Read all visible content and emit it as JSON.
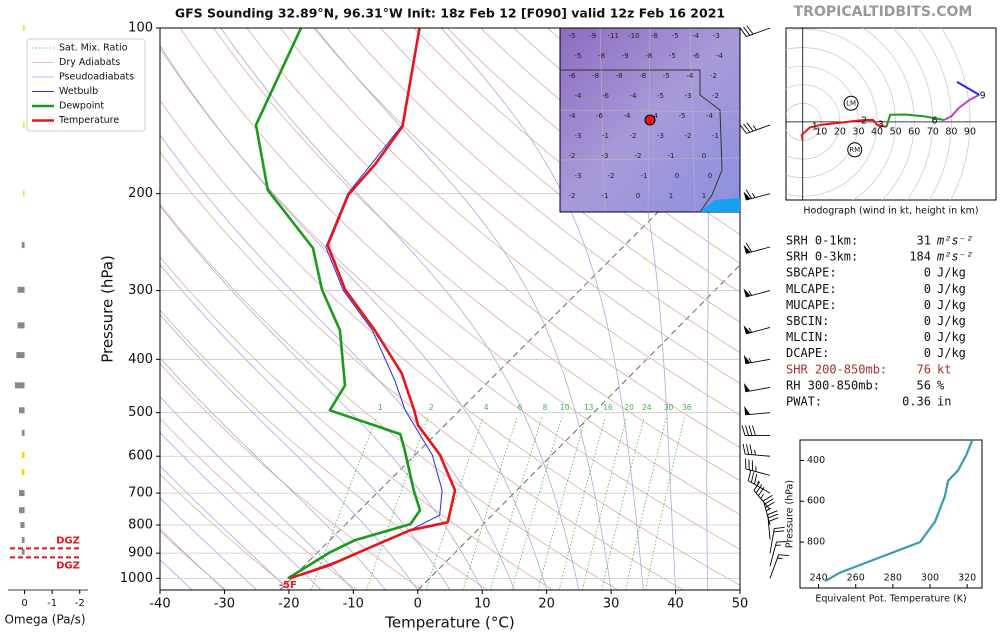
{
  "title": "GFS Sounding 32.89°N, 96.31°W Init: 18z Feb 12 [F090] valid 12z Feb 16 2021",
  "watermark": "TROPICALTIDBITS.COM",
  "chart_data": [
    {
      "type": "skewt",
      "xlabel": "Temperature (°C)",
      "ylabel": "Pressure (hPa)",
      "log_y": true,
      "grid": true,
      "legend": "upper left",
      "xlim": [
        -40,
        50
      ],
      "xticks": [
        -40,
        -30,
        -20,
        -10,
        0,
        10,
        20,
        30,
        40,
        50
      ],
      "ylim": [
        1050,
        100
      ],
      "yticks": [
        100,
        200,
        300,
        400,
        500,
        600,
        700,
        800,
        900,
        1000
      ],
      "background_lines": [
        {
          "name": "Sat. Mix. Ratio",
          "color": "#4caf50"
        },
        {
          "name": "Dry Adiabats",
          "color": "#e0aaa0"
        },
        {
          "name": "Pseudoadiabats",
          "color": "#a9a9dc"
        }
      ],
      "mixing_ratios": [
        1,
        2,
        4,
        6,
        8,
        10,
        13,
        16,
        20,
        24,
        30,
        36
      ],
      "series": [
        {
          "name": "Wetbulb",
          "color": "#2a2ae0",
          "pressure": [
            1000,
            927,
            835,
            768,
            692,
            597,
            495,
            437,
            354,
            300,
            250,
            200,
            150,
            100
          ],
          "values": [
            -21.2,
            -15.3,
            -8.6,
            -4.6,
            -6.9,
            -12.2,
            -21.2,
            -26,
            -34.9,
            -43.6,
            -51,
            -53.3,
            -52.2,
            -60
          ]
        },
        {
          "name": "Dewpoint",
          "color": "#1a9a1a",
          "pressure": [
            1000,
            898,
            853,
            797,
            752,
            692,
            585,
            547,
            495,
            446,
            354,
            299,
            251,
            197,
            150,
            100
          ],
          "values": [
            -21.4,
            -17.7,
            -15.1,
            -8.2,
            -8.2,
            -11.3,
            -17,
            -19.4,
            -32.9,
            -33.2,
            -39.9,
            -47,
            -52.9,
            -66.1,
            -74.9,
            -78.3
          ]
        },
        {
          "name": "Temperature",
          "color": "#e8141c",
          "pressure": [
            1000,
            946,
            871,
            818,
            791,
            692,
            597,
            527,
            495,
            424,
            354,
            299,
            248,
            201,
            177,
            151,
            100
          ],
          "values": [
            -21.1,
            -16.3,
            -11.4,
            -7.6,
            -2.6,
            -4.9,
            -11,
            -17.6,
            -19.8,
            -25.7,
            -34.5,
            -43.4,
            -50.9,
            -53.1,
            -52.2,
            -52,
            -59.9
          ]
        }
      ],
      "surface_label": "-5F",
      "winds": {
        "pressure": [
          100,
          150,
          200,
          250,
          300,
          350,
          400,
          450,
          500,
          550,
          600,
          650,
          700,
          750,
          800,
          850,
          900,
          950,
          1000
        ],
        "speed": [
          30,
          35,
          65,
          60,
          55,
          55,
          55,
          50,
          50,
          40,
          35,
          35,
          35,
          35,
          35,
          30,
          20,
          15,
          15
        ],
        "direction": [
          250,
          250,
          255,
          255,
          255,
          255,
          260,
          260,
          265,
          270,
          275,
          285,
          300,
          320,
          345,
          355,
          10,
          15,
          20
        ]
      }
    },
    {
      "type": "hodograph",
      "caption": "Hodograph (wind in kt, height in km)",
      "xlim": [
        -9,
        104
      ],
      "ylim": [
        -42,
        50.5
      ],
      "rings": [
        10,
        20,
        30,
        40,
        50,
        60,
        70,
        80,
        90
      ],
      "series": [
        {
          "color": "#e8141c",
          "u": [
            0,
            -0.5,
            3.8,
            10,
            20,
            28,
            33,
            38,
            40,
            45
          ],
          "v": [
            -10,
            -7,
            -3,
            -1.5,
            -0.5,
            0.5,
            1,
            1,
            -1.6,
            -2.7
          ]
        },
        {
          "color": "#1a9a1a",
          "u": [
            45,
            47,
            55,
            65,
            71,
            76
          ],
          "v": [
            -2.7,
            3.8,
            4,
            3,
            2,
            1
          ]
        },
        {
          "color": "#c040d0",
          "u": [
            76,
            80,
            84,
            90,
            95
          ],
          "v": [
            1,
            3,
            7.5,
            12,
            14.5
          ]
        },
        {
          "color": "#2a2ae0",
          "u": [
            95,
            83
          ],
          "v": [
            14.5,
            21.5
          ]
        }
      ],
      "height_markers": [
        {
          "label": "1",
          "u": 6.5,
          "v": -2.7
        },
        {
          "label": "2",
          "u": 33,
          "v": 0.5
        },
        {
          "label": "3",
          "u": 42,
          "v": -1.6
        },
        {
          "label": "6",
          "u": 71,
          "v": 0.5
        },
        {
          "label": "9",
          "u": 96.8,
          "v": 14
        }
      ],
      "storm_motion": [
        {
          "label": "LM",
          "u": 26,
          "v": 10
        },
        {
          "label": "RM",
          "u": 28,
          "v": -15
        }
      ]
    },
    {
      "type": "line",
      "xlabel": "Equivalent Pot. Temperature (K)",
      "ylabel": "Pressure (hPa)",
      "color": "#3a9ab0",
      "xlim": [
        230,
        328
      ],
      "xticks": [
        240,
        260,
        280,
        300,
        320
      ],
      "ylim": [
        1025,
        300
      ],
      "yticks": [
        400,
        600,
        800
      ],
      "x": [
        243.8,
        251.4,
        273,
        294.6,
        302.7,
        308,
        309.7,
        315,
        319.5,
        322.8
      ],
      "y": [
        990,
        950,
        875,
        800,
        700,
        575,
        500,
        450,
        375,
        300
      ]
    },
    {
      "type": "bar",
      "xlabel": "Omega (Pa/s)",
      "xlim": [
        0.6,
        -2.3
      ],
      "xticks": [
        0,
        -1,
        -2
      ],
      "ylim": [
        1050,
        100
      ],
      "series": [
        {
          "color": "#888888",
          "pressure": [
            248,
            299,
            347,
            393,
            446,
            495,
            544,
            700,
            752,
            800,
            852,
            895
          ],
          "values": [
            0.1,
            0.25,
            0.25,
            0.3,
            0.35,
            0.2,
            0.1,
            0.2,
            0.2,
            0.15,
            0.1,
            0.1
          ]
        },
        {
          "color": "#f5d800",
          "pressure": [
            100,
            150,
            200,
            597,
            641
          ],
          "values": [
            0.05,
            0.05,
            0.05,
            0.1,
            0.1
          ]
        }
      ],
      "dgz": {
        "label": "DGZ",
        "pressure": [
          882,
          916
        ]
      }
    }
  ],
  "map": {
    "rows": [
      [
        "-5",
        "-9",
        "-11",
        "-10",
        "-8",
        "-5",
        "-4",
        "-3"
      ],
      [
        "-5",
        "-8",
        "-9",
        "-8",
        "-5",
        "-6",
        "-4"
      ],
      [
        "-6",
        "-8",
        "-8",
        "-8",
        "-5",
        "-4",
        "-2"
      ],
      [
        "-4",
        "-6",
        "-4",
        "-5",
        "-3",
        "-2"
      ],
      [
        "-4",
        "-6",
        "-4",
        "-4",
        "-5",
        "-4"
      ],
      [
        "-3",
        "-1",
        "-2",
        "-3",
        "-2",
        "-1"
      ],
      [
        "-2",
        "-3",
        "-2",
        "-1",
        "0"
      ],
      [
        "-3",
        "-2",
        "-1",
        "0",
        "0"
      ],
      [
        "-2",
        "-1",
        "0",
        "1",
        "1"
      ]
    ]
  },
  "indices": {
    "rows": [
      {
        "label": "SRH 0-1km:",
        "value": 31,
        "unit": "m²s⁻²"
      },
      {
        "label": "SRH 0-3km:",
        "value": 184,
        "unit": "m²s⁻²"
      },
      {
        "label": "SBCAPE:",
        "value": 0,
        "unit": "J/kg"
      },
      {
        "label": "MLCAPE:",
        "value": 0,
        "unit": "J/kg"
      },
      {
        "label": "MUCAPE:",
        "value": 0,
        "unit": "J/kg"
      },
      {
        "label": "SBCIN:",
        "value": 0,
        "unit": "J/kg"
      },
      {
        "label": "MLCIN:",
        "value": 0,
        "unit": "J/kg"
      },
      {
        "label": "DCAPE:",
        "value": 0,
        "unit": "J/kg"
      },
      {
        "label": "SHR 200-850mb:",
        "value": 76,
        "unit": "kt",
        "color": "#a83232"
      },
      {
        "label": "RH 300-850mb:",
        "value": 56,
        "unit": "%"
      },
      {
        "label": "PWAT:",
        "value": 0.36,
        "unit": "in"
      }
    ]
  }
}
